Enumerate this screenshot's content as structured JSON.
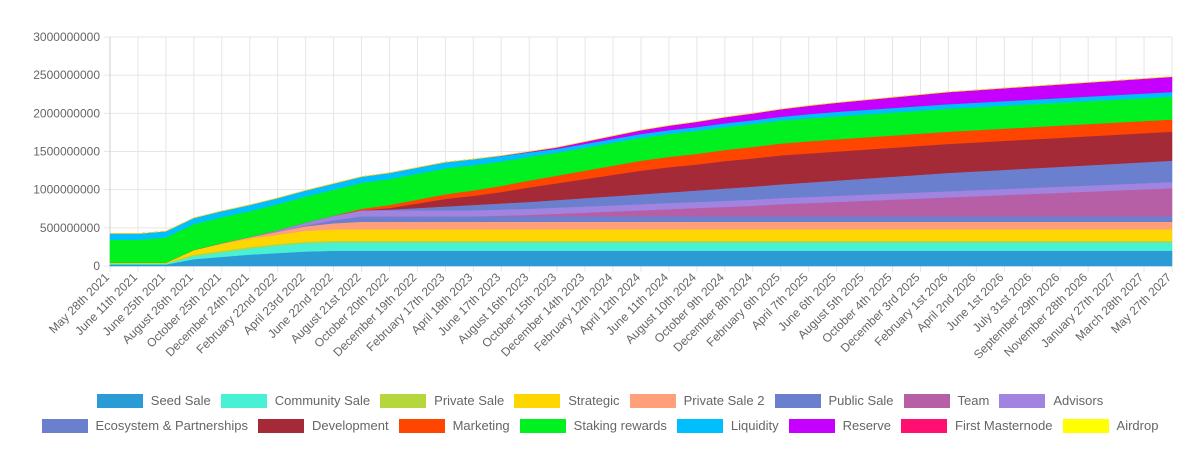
{
  "chart_data": {
    "type": "area",
    "stacked": true,
    "title": "",
    "xlabel": "",
    "ylabel": "",
    "ylim": [
      0,
      3000000000
    ],
    "y_ticks": [
      "0",
      "500000000",
      "1000000000",
      "1500000000",
      "2000000000",
      "2500000000",
      "3000000000"
    ],
    "grid": true,
    "legend_position": "bottom",
    "x": [
      "May 28th 2021",
      "June 11th 2021",
      "June 25th 2021",
      "August 26th 2021",
      "October 25th 2021",
      "December 24th 2021",
      "February 22nd 2022",
      "April 23rd 2022",
      "June 22nd 2022",
      "August 21st 2022",
      "October 20th 2022",
      "December 19th 2022",
      "February 17th 2023",
      "April 18th 2023",
      "June 17th 2023",
      "August 16th 2023",
      "October 15th 2023",
      "December 14th 2023",
      "February 12th 2024",
      "April 12th 2024",
      "June 11th 2024",
      "August 10th 2024",
      "October 9th 2024",
      "December 8th 2024",
      "February 6th 2025",
      "April 7th 2025",
      "June 6th 2025",
      "August 5th 2025",
      "October 4th 2025",
      "December 3rd 2025",
      "February 1st 2026",
      "April 2nd 2026",
      "June 1st 2026",
      "July 31st 2026",
      "September 29th 2026",
      "November 28th 2026",
      "January 27th 2027",
      "March 28th 2027",
      "May 27th 2027"
    ],
    "series": [
      {
        "name": "Seed Sale",
        "color": "#2a9bd5",
        "values": [
          20000000,
          20000000,
          20000000,
          90000000,
          120000000,
          150000000,
          170000000,
          190000000,
          200000000,
          200000000,
          200000000,
          200000000,
          200000000,
          200000000,
          200000000,
          200000000,
          200000000,
          200000000,
          200000000,
          200000000,
          200000000,
          200000000,
          200000000,
          200000000,
          200000000,
          200000000,
          200000000,
          200000000,
          200000000,
          200000000,
          200000000,
          200000000,
          200000000,
          200000000,
          200000000,
          200000000,
          200000000,
          200000000,
          200000000
        ]
      },
      {
        "name": "Community Sale",
        "color": "#48f0d4",
        "values": [
          10000000,
          10000000,
          10000000,
          40000000,
          60000000,
          80000000,
          100000000,
          110000000,
          110000000,
          110000000,
          110000000,
          110000000,
          110000000,
          110000000,
          110000000,
          110000000,
          110000000,
          110000000,
          110000000,
          110000000,
          110000000,
          110000000,
          110000000,
          110000000,
          110000000,
          110000000,
          110000000,
          110000000,
          110000000,
          110000000,
          110000000,
          110000000,
          110000000,
          110000000,
          110000000,
          110000000,
          110000000,
          110000000,
          110000000
        ]
      },
      {
        "name": "Private Sale",
        "color": "#b5d63c",
        "values": [
          10000000,
          10000000,
          10000000,
          20000000,
          20000000,
          20000000,
          20000000,
          20000000,
          20000000,
          20000000,
          20000000,
          20000000,
          20000000,
          20000000,
          20000000,
          20000000,
          20000000,
          20000000,
          20000000,
          20000000,
          20000000,
          20000000,
          20000000,
          20000000,
          20000000,
          20000000,
          20000000,
          20000000,
          20000000,
          20000000,
          20000000,
          20000000,
          20000000,
          20000000,
          20000000,
          20000000,
          20000000,
          20000000,
          20000000
        ]
      },
      {
        "name": "Strategic",
        "color": "#ffd700",
        "values": [
          5000000,
          5000000,
          5000000,
          60000000,
          90000000,
          110000000,
          120000000,
          140000000,
          150000000,
          150000000,
          150000000,
          150000000,
          150000000,
          150000000,
          150000000,
          150000000,
          150000000,
          150000000,
          150000000,
          150000000,
          150000000,
          150000000,
          150000000,
          150000000,
          150000000,
          150000000,
          150000000,
          150000000,
          150000000,
          150000000,
          150000000,
          150000000,
          150000000,
          150000000,
          150000000,
          150000000,
          150000000,
          150000000,
          150000000
        ]
      },
      {
        "name": "Private Sale 2",
        "color": "#ffa07a",
        "values": [
          0,
          0,
          0,
          0,
          10000000,
          20000000,
          40000000,
          60000000,
          80000000,
          100000000,
          100000000,
          100000000,
          100000000,
          100000000,
          100000000,
          100000000,
          100000000,
          100000000,
          100000000,
          100000000,
          100000000,
          100000000,
          100000000,
          100000000,
          100000000,
          100000000,
          100000000,
          100000000,
          100000000,
          100000000,
          100000000,
          100000000,
          100000000,
          100000000,
          100000000,
          100000000,
          100000000,
          100000000,
          100000000
        ]
      },
      {
        "name": "Public Sale",
        "color": "#6b7fcf",
        "values": [
          0,
          0,
          0,
          0,
          0,
          0,
          0,
          10000000,
          40000000,
          70000000,
          70000000,
          70000000,
          70000000,
          70000000,
          70000000,
          70000000,
          70000000,
          70000000,
          70000000,
          70000000,
          70000000,
          70000000,
          70000000,
          70000000,
          70000000,
          70000000,
          70000000,
          70000000,
          70000000,
          70000000,
          70000000,
          70000000,
          70000000,
          70000000,
          70000000,
          70000000,
          70000000,
          70000000,
          70000000
        ]
      },
      {
        "name": "Team",
        "color": "#b75fa6",
        "values": [
          0,
          0,
          0,
          0,
          0,
          0,
          0,
          0,
          0,
          0,
          0,
          0,
          0,
          0,
          10000000,
          20000000,
          35000000,
          50000000,
          65000000,
          80000000,
          95000000,
          110000000,
          125000000,
          140000000,
          160000000,
          175000000,
          190000000,
          205000000,
          220000000,
          235000000,
          250000000,
          265000000,
          280000000,
          295000000,
          310000000,
          325000000,
          340000000,
          355000000,
          370000000
        ]
      },
      {
        "name": "Advisors",
        "color": "#a084e0",
        "values": [
          0,
          0,
          0,
          0,
          0,
          0,
          20000000,
          40000000,
          60000000,
          80000000,
          80000000,
          80000000,
          80000000,
          80000000,
          80000000,
          80000000,
          80000000,
          80000000,
          80000000,
          80000000,
          80000000,
          80000000,
          80000000,
          80000000,
          80000000,
          80000000,
          80000000,
          80000000,
          80000000,
          80000000,
          80000000,
          80000000,
          80000000,
          80000000,
          80000000,
          80000000,
          80000000,
          80000000,
          80000000
        ]
      },
      {
        "name": "Ecosystem & Partnerships",
        "color": "#6b7fcf",
        "values": [
          0,
          0,
          0,
          0,
          0,
          0,
          0,
          0,
          0,
          0,
          10000000,
          30000000,
          50000000,
          70000000,
          80000000,
          90000000,
          100000000,
          110000000,
          120000000,
          130000000,
          140000000,
          150000000,
          160000000,
          170000000,
          180000000,
          190000000,
          200000000,
          210000000,
          220000000,
          230000000,
          240000000,
          245000000,
          250000000,
          255000000,
          260000000,
          265000000,
          270000000,
          275000000,
          280000000
        ]
      },
      {
        "name": "Development",
        "color": "#a52a38",
        "values": [
          0,
          0,
          0,
          0,
          0,
          0,
          0,
          0,
          0,
          0,
          20000000,
          60000000,
          100000000,
          120000000,
          150000000,
          190000000,
          220000000,
          250000000,
          280000000,
          310000000,
          330000000,
          340000000,
          360000000,
          370000000,
          380000000,
          380000000,
          380000000,
          380000000,
          380000000,
          380000000,
          380000000,
          380000000,
          380000000,
          380000000,
          380000000,
          380000000,
          380000000,
          380000000,
          380000000
        ]
      },
      {
        "name": "Marketing",
        "color": "#ff4500",
        "values": [
          0,
          0,
          0,
          0,
          0,
          0,
          0,
          0,
          0,
          20000000,
          40000000,
          50000000,
          60000000,
          70000000,
          80000000,
          90000000,
          100000000,
          110000000,
          120000000,
          130000000,
          135000000,
          140000000,
          145000000,
          150000000,
          155000000,
          160000000,
          160000000,
          160000000,
          160000000,
          160000000,
          160000000,
          160000000,
          160000000,
          160000000,
          160000000,
          160000000,
          160000000,
          160000000,
          160000000
        ]
      },
      {
        "name": "Staking rewards",
        "color": "#00f020",
        "values": [
          300000000,
          300000000,
          330000000,
          340000000,
          340000000,
          340000000,
          340000000,
          340000000,
          340000000,
          340000000,
          340000000,
          340000000,
          340000000,
          330000000,
          320000000,
          310000000,
          300000000,
          300000000,
          300000000,
          300000000,
          300000000,
          300000000,
          300000000,
          300000000,
          300000000,
          300000000,
          300000000,
          300000000,
          300000000,
          300000000,
          300000000,
          300000000,
          300000000,
          300000000,
          300000000,
          300000000,
          300000000,
          300000000,
          300000000
        ]
      },
      {
        "name": "Liquidity",
        "color": "#00bfff",
        "values": [
          80000000,
          80000000,
          80000000,
          80000000,
          80000000,
          80000000,
          80000000,
          80000000,
          80000000,
          80000000,
          80000000,
          80000000,
          80000000,
          80000000,
          70000000,
          60000000,
          50000000,
          50000000,
          50000000,
          50000000,
          50000000,
          50000000,
          50000000,
          50000000,
          50000000,
          55000000,
          60000000,
          60000000,
          60000000,
          60000000,
          60000000,
          60000000,
          60000000,
          60000000,
          60000000,
          60000000,
          60000000,
          60000000,
          60000000
        ]
      },
      {
        "name": "Reserve",
        "color": "#c500ff",
        "values": [
          0,
          0,
          0,
          0,
          0,
          0,
          0,
          0,
          0,
          0,
          0,
          0,
          0,
          0,
          5000000,
          10000000,
          20000000,
          30000000,
          40000000,
          50000000,
          60000000,
          70000000,
          80000000,
          90000000,
          100000000,
          110000000,
          120000000,
          130000000,
          140000000,
          150000000,
          160000000,
          165000000,
          170000000,
          175000000,
          180000000,
          185000000,
          190000000,
          195000000,
          200000000
        ]
      },
      {
        "name": "First Masternode",
        "color": "#ff1070",
        "values": [
          0,
          0,
          0,
          0,
          0,
          0,
          0,
          0,
          0,
          0,
          0,
          0,
          0,
          0,
          0,
          0,
          0,
          0,
          0,
          0,
          0,
          0,
          0,
          0,
          0,
          0,
          0,
          0,
          0,
          0,
          0,
          0,
          0,
          0,
          0,
          0,
          0,
          0,
          0
        ]
      },
      {
        "name": "Airdrop",
        "color": "#ffff00",
        "values": [
          0,
          0,
          0,
          0,
          0,
          0,
          0,
          0,
          0,
          0,
          0,
          0,
          0,
          0,
          0,
          0,
          0,
          0,
          0,
          0,
          0,
          0,
          0,
          0,
          0,
          0,
          0,
          0,
          0,
          0,
          0,
          0,
          0,
          0,
          0,
          0,
          0,
          0,
          0
        ]
      }
    ]
  }
}
